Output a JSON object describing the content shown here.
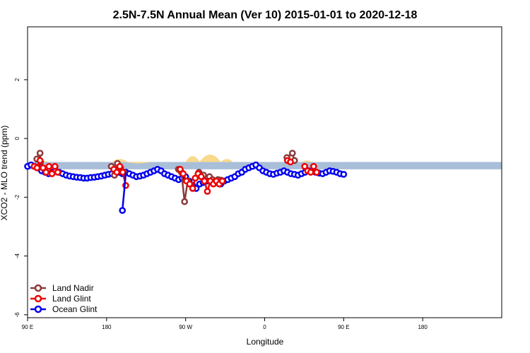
{
  "chart_data": {
    "type": "line",
    "title": "2.5N-7.5N Annual Mean (Ver 10)   2015-01-01 to 2020-12-18",
    "xlabel": "Longitude",
    "ylabel": "XCO2 - MLO trend (ppm)",
    "xlim": [
      -90,
      180
    ],
    "ylim": [
      -6.1,
      3.8
    ],
    "x_ticks": [
      {
        "value": -90,
        "label": "90 E"
      },
      {
        "value": -45,
        "label": "180"
      },
      {
        "value": 0,
        "label": "90 W"
      },
      {
        "value": 45,
        "label": "0"
      },
      {
        "value": 90,
        "label": "90 E"
      },
      {
        "value": 135,
        "label": "180"
      }
    ],
    "y_ticks": [
      {
        "value": 2,
        "label": "2"
      },
      {
        "value": 0,
        "label": "0"
      },
      {
        "value": -2,
        "label": "-2"
      },
      {
        "value": -4,
        "label": "-4"
      },
      {
        "value": -6,
        "label": "-6"
      }
    ],
    "grid": false,
    "legend_position": "bottom-left",
    "background_colors": {
      "ocean": "#a9bed9",
      "land": "#f9d98a"
    },
    "series": [
      {
        "name": "Land Nadir",
        "color": "#8b3a3a",
        "segments": [
          {
            "x": [
              -84.7,
              -82.9,
              -82.6
            ],
            "y": [
              -0.7,
              -0.5,
              -0.8
            ]
          },
          {
            "x": [
              -42.3,
              -40.5,
              -38.8
            ],
            "y": [
              -0.95,
              -1.25,
              -0.85
            ]
          },
          {
            "x": [
              -37.0,
              -35.2
            ],
            "y": [
              -1.0,
              -1.15
            ]
          },
          {
            "x": [
              -4.1,
              -2.4,
              -0.6,
              1.2
            ],
            "y": [
              -1.05,
              -1.15,
              -2.15,
              -1.45
            ]
          },
          {
            "x": [
              7.6,
              10.2,
              13.6,
              15.3,
              17.0,
              18.5,
              20.3
            ],
            "y": [
              -1.15,
              -1.25,
              -1.3,
              -1.4,
              -1.45,
              -1.4,
              -1.42
            ]
          },
          {
            "x": [
              57.7,
              60.8,
              62.0
            ],
            "y": [
              -0.65,
              -0.5,
              -0.75
            ]
          }
        ]
      },
      {
        "name": "Land Glint",
        "color": "#ee0000",
        "segments": [
          {
            "x": [
              -86.2,
              -84.6,
              -82.9,
              -81.2,
              -79.5
            ],
            "y": [
              -0.95,
              -1.0,
              -0.75,
              -1.0,
              -1.15
            ]
          },
          {
            "x": [
              -77.8,
              -76.1,
              -74.4,
              -72.8
            ],
            "y": [
              -0.95,
              -1.2,
              -0.95,
              -1.15
            ]
          },
          {
            "x": [
              -40.9,
              -39.2,
              -37.5,
              -35.8,
              -34.1
            ],
            "y": [
              -1.05,
              -1.15,
              -0.95,
              -1.15,
              -1.6
            ]
          },
          {
            "x": [
              -3.1,
              -1.4,
              0.5,
              2.3,
              4.0,
              5.5,
              7.1
            ],
            "y": [
              -1.05,
              -1.2,
              -1.45,
              -1.55,
              -1.7,
              -1.35,
              -1.2
            ]
          },
          {
            "x": [
              8.9,
              10.7,
              12.4,
              14.1,
              15.8,
              17.5,
              19.2,
              20.9
            ],
            "y": [
              -1.3,
              -1.45,
              -1.8,
              -1.45,
              -1.55,
              -1.45,
              -1.55,
              -1.45
            ]
          },
          {
            "x": [
              58.0,
              59.7
            ],
            "y": [
              -0.75,
              -0.8
            ]
          },
          {
            "x": [
              67.8,
              69.5,
              71.2,
              72.9,
              74.6
            ],
            "y": [
              -0.95,
              -1.1,
              -1.15,
              -0.95,
              -1.15
            ]
          }
        ]
      },
      {
        "name": "Ocean Glint",
        "color": "#0000ee",
        "segments": [
          {
            "x": [
              -90.0,
              -88.0,
              -86.0,
              -84.0,
              -82.0,
              -80.0,
              -78.0,
              -76.0,
              -74.0,
              -72.0,
              -70.0,
              -68.0,
              -66.0,
              -64.0,
              -62.0,
              -60.0,
              -58.0,
              -56.0,
              -54.0,
              -52.0,
              -50.0,
              -48.0,
              -46.0,
              -44.0,
              -42.0,
              -40.0,
              -38.0,
              -36.0,
              -34.0,
              -32.0,
              -30.0,
              -28.0,
              -26.0,
              -24.0,
              -22.0,
              -20.0,
              -18.0,
              -16.0,
              -14.0,
              -12.0,
              -10.0,
              -8.0,
              -6.0,
              -4.0,
              -2.0,
              0.0,
              2.0,
              4.0,
              6.0,
              8.0,
              10.0,
              12.0,
              14.0,
              16.0,
              18.0,
              20.0,
              22.0,
              24.0,
              26.0,
              28.0,
              30.0,
              32.0,
              34.0,
              36.0,
              38.0,
              40.0,
              42.0,
              44.0,
              46.0,
              48.0,
              50.0,
              52.0,
              54.0,
              56.0,
              58.0,
              60.0,
              62.0,
              64.0,
              66.0,
              68.0,
              70.0,
              72.0,
              74.0,
              76.0,
              78.0,
              80.0,
              82.0,
              84.0,
              86.0,
              88.0,
              90.0
            ],
            "y": [
              -0.95,
              -0.9,
              -0.95,
              -1.0,
              -1.1,
              -1.15,
              -1.2,
              -1.15,
              -1.1,
              -1.15,
              -1.2,
              -1.25,
              -1.28,
              -1.3,
              -1.32,
              -1.33,
              -1.35,
              -1.35,
              -1.33,
              -1.32,
              -1.3,
              -1.28,
              -1.25,
              -1.22,
              -1.2,
              -1.18,
              -1.15,
              -1.2,
              -1.15,
              -1.2,
              -1.25,
              -1.3,
              -1.28,
              -1.25,
              -1.2,
              -1.15,
              -1.1,
              -1.05,
              -1.1,
              -1.2,
              -1.25,
              -1.3,
              -1.35,
              -1.4,
              -1.35,
              -1.3,
              -1.45,
              -1.6,
              -1.7,
              -1.55,
              -1.5,
              -1.45,
              -1.4,
              -1.45,
              -1.5,
              -1.55,
              -1.45,
              -1.4,
              -1.35,
              -1.3,
              -1.2,
              -1.15,
              -1.05,
              -1.0,
              -0.95,
              -0.9,
              -1.0,
              -1.1,
              -1.15,
              -1.2,
              -1.22,
              -1.18,
              -1.15,
              -1.1,
              -1.15,
              -1.2,
              -1.22,
              -1.25,
              -1.2,
              -1.15,
              -1.1,
              -1.12,
              -1.15,
              -1.18,
              -1.2,
              -1.15,
              -1.1,
              -1.12,
              -1.15,
              -1.2,
              -1.22
            ]
          }
        ]
      }
    ]
  }
}
